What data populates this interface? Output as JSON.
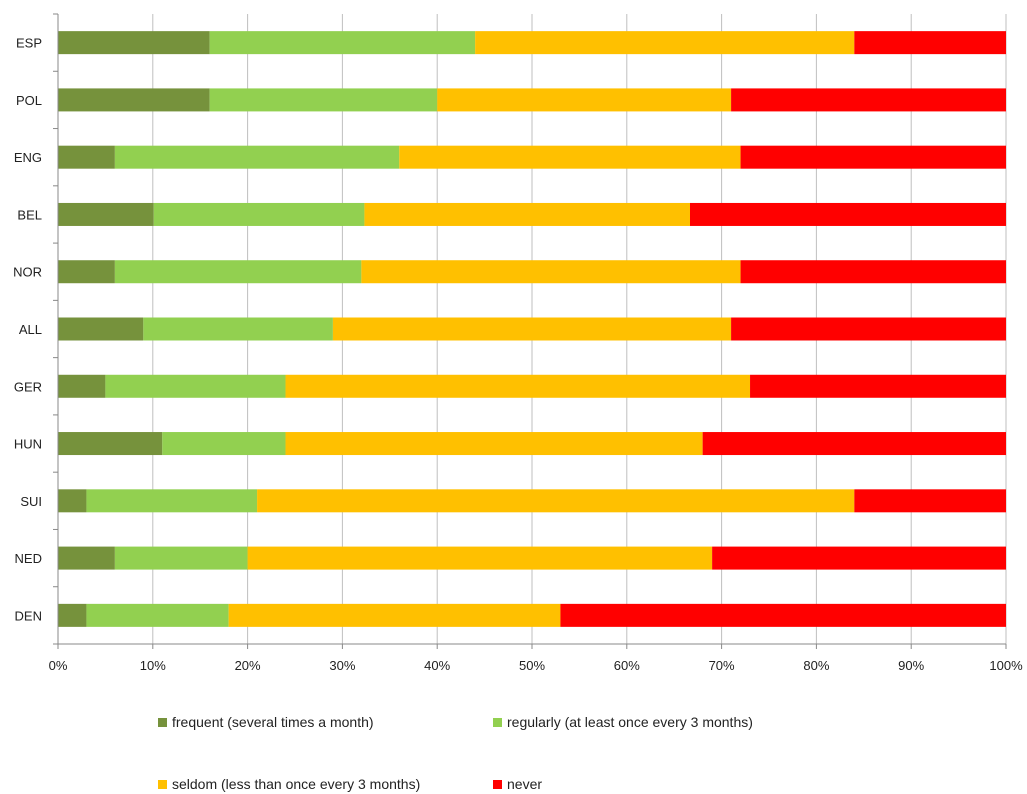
{
  "chart_data": {
    "type": "bar",
    "orientation": "horizontal",
    "stacked": "percent",
    "categories": [
      "ESP",
      "POL",
      "ENG",
      "BEL",
      "NOR",
      "ALL",
      "GER",
      "HUN",
      "SUI",
      "NED",
      "DEN"
    ],
    "series": [
      {
        "name": "frequent (several times a month)",
        "color": "#76923c",
        "values": [
          16,
          16,
          6,
          10,
          6,
          9,
          5,
          11,
          3,
          6,
          3
        ]
      },
      {
        "name": "regularly (at least once every 3 months)",
        "color": "#92d050",
        "values": [
          28,
          24,
          30,
          22,
          26,
          20,
          19,
          13,
          18,
          14,
          15
        ]
      },
      {
        "name": "seldom (less than once every 3 months)",
        "color": "#ffc000",
        "values": [
          40,
          31,
          36,
          34,
          40,
          42,
          49,
          44,
          63,
          49,
          35
        ]
      },
      {
        "name": "never",
        "color": "#ff0000",
        "values": [
          16,
          29,
          28,
          33,
          28,
          29,
          27,
          32,
          16,
          31,
          47
        ]
      }
    ],
    "xticks": [
      "0%",
      "10%",
      "20%",
      "30%",
      "40%",
      "50%",
      "60%",
      "70%",
      "80%",
      "90%",
      "100%"
    ],
    "xlim": [
      0,
      100
    ],
    "grid": true,
    "legend_position": "bottom",
    "title": "",
    "xlabel": "",
    "ylabel": ""
  }
}
